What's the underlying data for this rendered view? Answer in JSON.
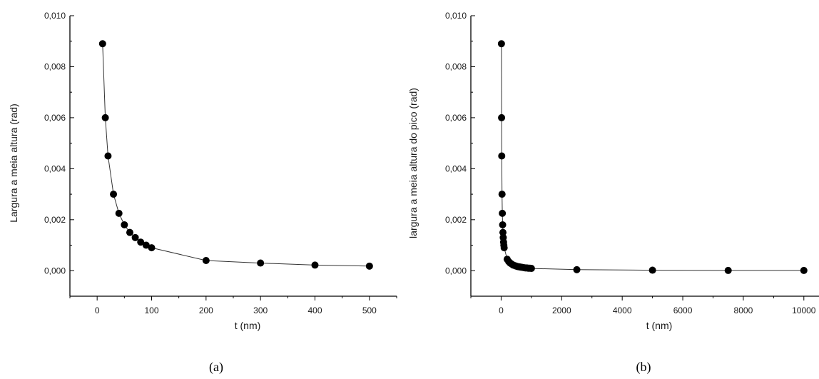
{
  "chart_data": [
    {
      "type": "scatter",
      "panel_caption": "(a)",
      "xlabel": "t (nm)",
      "ylabel": "Largura a meia altura (rad)",
      "xlim": [
        -50,
        550
      ],
      "ylim": [
        -0.001,
        0.01
      ],
      "xticks": [
        0,
        100,
        200,
        300,
        400,
        500
      ],
      "xtick_labels": [
        "0",
        "100",
        "200",
        "300",
        "400",
        "500"
      ],
      "yticks": [
        0.0,
        0.002,
        0.004,
        0.006,
        0.008,
        0.01
      ],
      "ytick_labels": [
        "0,000",
        "0,002",
        "0,004",
        "0,006",
        "0,008",
        "0,010"
      ],
      "connected": true,
      "grid": false,
      "x": [
        10,
        15,
        20,
        30,
        40,
        50,
        60,
        70,
        80,
        90,
        100,
        200,
        300,
        400,
        500
      ],
      "y": [
        0.0089,
        0.006,
        0.0045,
        0.003,
        0.00225,
        0.0018,
        0.0015,
        0.0013,
        0.00112,
        0.001,
        0.0009,
        0.0004,
        0.0003,
        0.00022,
        0.00018
      ]
    },
    {
      "type": "scatter",
      "panel_caption": "(b)",
      "xlabel": "t (nm)",
      "ylabel": "largura a meia altura do pico (rad)",
      "xlim": [
        -1000,
        10500
      ],
      "ylim": [
        -0.001,
        0.01
      ],
      "xticks": [
        0,
        2000,
        4000,
        6000,
        8000,
        10000
      ],
      "xtick_labels": [
        "0",
        "2000",
        "4000",
        "6000",
        "8000",
        "10000"
      ],
      "yticks": [
        0.0,
        0.002,
        0.004,
        0.006,
        0.008,
        0.01
      ],
      "ytick_labels": [
        "0,000",
        "0,002",
        "0,004",
        "0,006",
        "0,008",
        "0,010"
      ],
      "connected": true,
      "grid": false,
      "x": [
        10,
        15,
        20,
        30,
        40,
        50,
        60,
        70,
        80,
        90,
        100,
        200,
        250,
        300,
        350,
        400,
        450,
        500,
        550,
        600,
        650,
        700,
        750,
        800,
        850,
        900,
        950,
        1000,
        2500,
        5000,
        7500,
        10000
      ],
      "y": [
        0.0089,
        0.006,
        0.0045,
        0.003,
        0.00225,
        0.0018,
        0.0015,
        0.0013,
        0.00112,
        0.001,
        0.0009,
        0.00045,
        0.00036,
        0.0003,
        0.00026,
        0.00022,
        0.0002,
        0.00018,
        0.00016,
        0.00015,
        0.00014,
        0.00013,
        0.00012,
        0.00011,
        0.00011,
        0.0001,
        0.0001,
        9e-05,
        4e-05,
        2e-05,
        1e-05,
        1e-05
      ]
    }
  ]
}
